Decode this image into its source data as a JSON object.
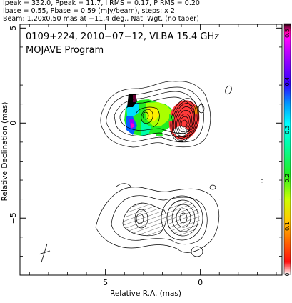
{
  "header": {
    "line1": "Ipeak = 332.0, Ppeak = 11.7, I RMS = 0.17, P RMS = 0.20",
    "line2": "Ibase = 0.55, Pbase = 0.59 (mJy/beam), steps: x 2",
    "line3": "Beam: 1.20x0.50 mas at −11.4 deg., Nat. Wgt. (no taper)"
  },
  "chart_data": {
    "type": "contour",
    "title": "0109+224, 2010−07−12, VLBA 15.4 GHz",
    "subtitle": "MOJAVE Program",
    "xlabel": "Relative R.A. (mas)",
    "ylabel": "Relative Declination (mas)",
    "xlim": [
      9.5,
      -4.3
    ],
    "ylim": [
      -8.0,
      5.2
    ],
    "x_reversed": true,
    "xticks": [
      5,
      0
    ],
    "yticks": [
      5,
      0,
      -5
    ],
    "xtick_labels": [
      "5",
      "0"
    ],
    "ytick_labels": [
      "5",
      "0",
      "−5"
    ],
    "colorbar": {
      "ticks": [
        0.5,
        0.4,
        0.3,
        0.2,
        0.1,
        0
      ],
      "tick_labels": [
        "0.5",
        "0.4",
        "0.3",
        "0.2",
        "0.1",
        "0"
      ],
      "range": [
        0,
        0.52
      ],
      "colors": [
        "#ffffff",
        "#ff1010",
        "#ff6600",
        "#ffcc00",
        "#ccff00",
        "#22ee22",
        "#00ffaa",
        "#00ffff",
        "#0099ff",
        "#3300ff",
        "#8800ff",
        "#cc00ff",
        "#ff00ff",
        "#ff0099",
        "#660033",
        "#000000"
      ]
    },
    "stokes_i_contours": {
      "core_peak": [
        0.0,
        0.0
      ],
      "levels_mjy_per_beam": [
        0.55,
        1.1,
        2.2,
        4.4,
        8.8,
        17.6,
        35.2,
        70.4,
        140.8,
        281.6
      ]
    },
    "polarization_panel_offset_dec_mas": -5.0,
    "accent_colors": {
      "core_polfrac": "#ff2a2a",
      "jet_polfrac": "#22ee22"
    }
  }
}
